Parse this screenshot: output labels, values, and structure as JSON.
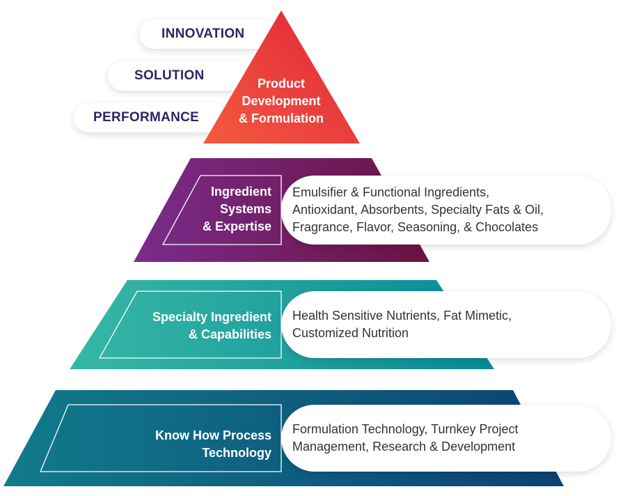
{
  "colors": {
    "tier1": [
      "#f45a3f",
      "#e0243b"
    ],
    "tier2": [
      "#7a2c8c",
      "#6a1341"
    ],
    "tier3": [
      "#37b8a6",
      "#0a8a96"
    ],
    "tier4": [
      "#117b8c",
      "#0c4272"
    ],
    "pill_text": "#2a2766"
  },
  "side_labels": {
    "innovation": "INNOVATION",
    "solution": "SOLUTION",
    "performance": "PERFORMANCE"
  },
  "tiers": [
    {
      "title": [
        "Product",
        "Development",
        "& Formulation"
      ]
    },
    {
      "title": [
        "Ingredient",
        "Systems",
        "& Expertise"
      ],
      "desc": [
        "Emulsifier & Functional Ingredients,",
        "Antioxidant, Absorbents, Specialty Fats & Oil,",
        "Fragrance, Flavor, Seasoning, & Chocolates"
      ]
    },
    {
      "title": [
        "Specialty Ingredient",
        "& Capabilities"
      ],
      "desc": [
        "Health Sensitive Nutrients, Fat Mimetic,",
        "Customized Nutrition"
      ]
    },
    {
      "title": [
        "Know How Process",
        "Technology"
      ],
      "desc": [
        "Formulation Technology, Turnkey Project",
        "Management, Research & Development"
      ]
    }
  ]
}
